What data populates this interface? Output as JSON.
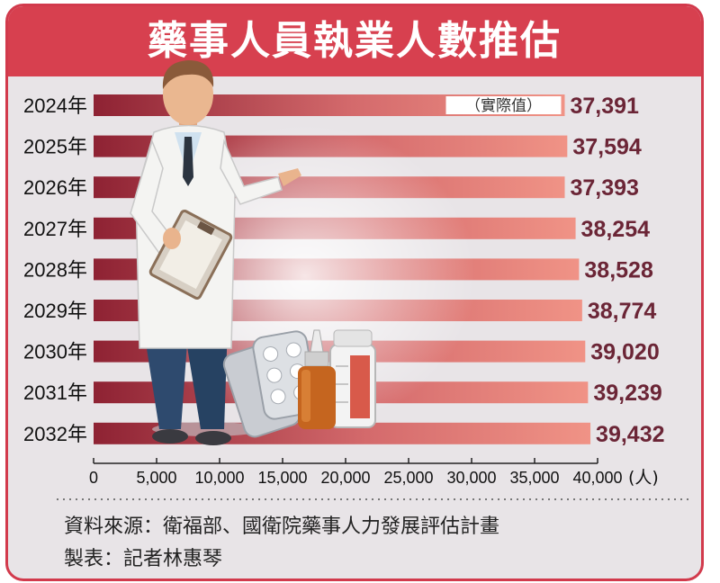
{
  "chart_data": {
    "type": "bar",
    "orientation": "horizontal",
    "title": "藥事人員執業人數推估",
    "categories": [
      "2024年",
      "2025年",
      "2026年",
      "2027年",
      "2028年",
      "2029年",
      "2030年",
      "2031年",
      "2032年"
    ],
    "values": [
      37391,
      37594,
      37393,
      38254,
      38528,
      38774,
      39020,
      39239,
      39432
    ],
    "value_labels": [
      "37,391",
      "37,594",
      "37,393",
      "38,254",
      "38,528",
      "38,774",
      "39,020",
      "39,239",
      "39,432"
    ],
    "annotation": "（實際值）",
    "xlim": [
      0,
      40000
    ],
    "x_ticks": [
      "0",
      "5,000",
      "10,000",
      "15,000",
      "20,000",
      "25,000",
      "30,000",
      "35,000",
      "40,000"
    ],
    "x_unit": "(人)",
    "grid": false,
    "colors": {
      "bar_dark": "#8e2233",
      "bar_light": "#ee8a82",
      "label": "#6b2536",
      "accent": "#d7404f"
    }
  },
  "footer": {
    "source": "資料來源：衛福部、國衛院藥事人力發展評估計畫",
    "credit": "製表：記者林惠琴"
  }
}
